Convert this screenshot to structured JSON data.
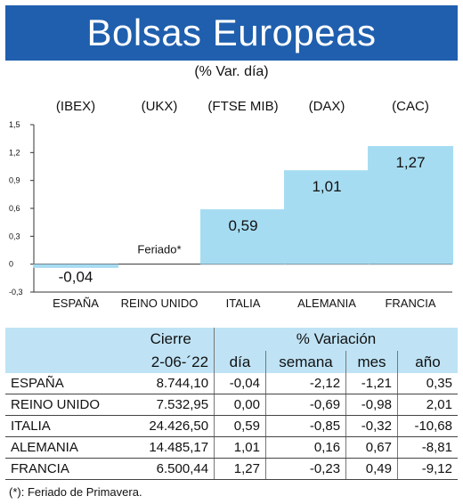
{
  "title": "Bolsas Europeas",
  "subtitle": "(% Var. día)",
  "chart_data": {
    "type": "bar",
    "categories": [
      "ESPAÑA",
      "REINO UNIDO",
      "ITALIA",
      "ALEMANIA",
      "FRANCIA"
    ],
    "index_names": [
      "(IBEX)",
      "(UKX)",
      "(FTSE MIB)",
      "(DAX)",
      "(CAC)"
    ],
    "values": [
      -0.04,
      0.0,
      0.59,
      1.01,
      1.27
    ],
    "value_labels": [
      "-0,04",
      "Feriado*",
      "0,59",
      "1,01",
      "1,27"
    ],
    "y_ticks": [
      "1,5",
      "1,2",
      "0,9",
      "0,6",
      "0,3",
      "0",
      "-0,3"
    ],
    "ylim": [
      -0.3,
      1.5
    ],
    "bar_color": "#a6dcf2"
  },
  "table": {
    "header_cierre": "Cierre",
    "header_variacion": "% Variación",
    "date": "2-06-´22",
    "col_dia": "día",
    "col_semana": "semana",
    "col_mes": "mes",
    "col_ano": "año",
    "rows": [
      {
        "country": "ESPAÑA",
        "cierre": "8.744,10",
        "dia": "-0,04",
        "semana": "-2,12",
        "mes": "-1,21",
        "ano": "0,35"
      },
      {
        "country": "REINO UNIDO",
        "cierre": "7.532,95",
        "dia": "0,00",
        "semana": "-0,69",
        "mes": "-0,98",
        "ano": "2,01"
      },
      {
        "country": "ITALIA",
        "cierre": "24.426,50",
        "dia": "0,59",
        "semana": "-0,85",
        "mes": "-0,32",
        "ano": "-10,68"
      },
      {
        "country": "ALEMANIA",
        "cierre": "14.485,17",
        "dia": "1,01",
        "semana": "0,16",
        "mes": "0,67",
        "ano": "-8,81"
      },
      {
        "country": "FRANCIA",
        "cierre": "6.500,44",
        "dia": "1,27",
        "semana": "-0,23",
        "mes": "0,49",
        "ano": "-9,12"
      }
    ]
  },
  "footnote": "(*): Feriado de Primavera.",
  "colors": {
    "title_bg": "#1f5fae",
    "header_bg": "#bfe3f5"
  }
}
